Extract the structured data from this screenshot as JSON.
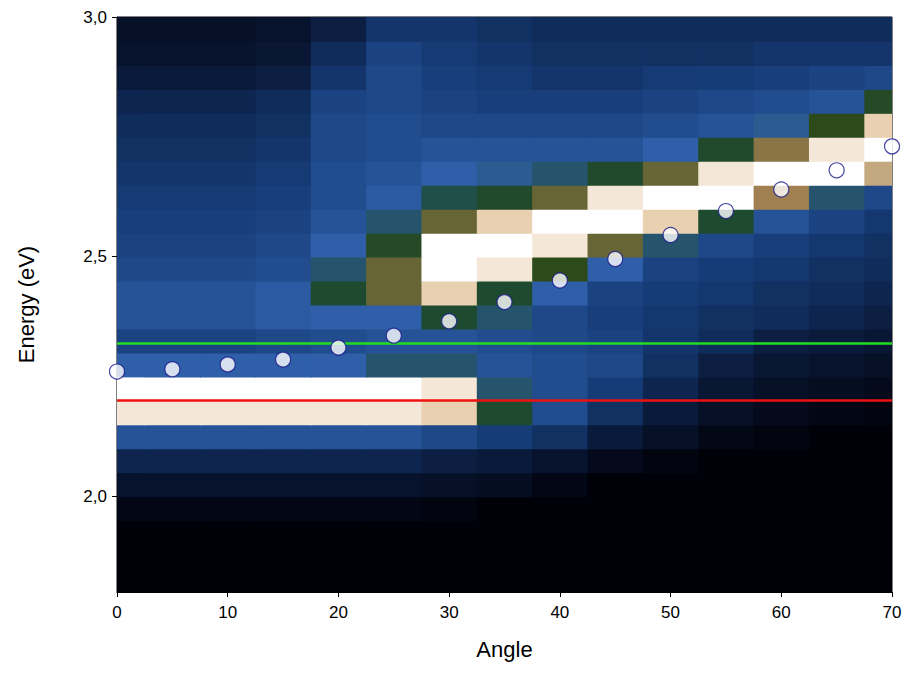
{
  "chart_data": {
    "type": "heatmap",
    "xlabel": "Angle",
    "ylabel": "Energy (eV)",
    "xlim": [
      0,
      70
    ],
    "ylim": [
      1.8,
      3.0
    ],
    "xticks": [
      0,
      10,
      20,
      30,
      40,
      50,
      60,
      70
    ],
    "yticks": [
      {
        "value": 2.0,
        "label": "2,0"
      },
      {
        "value": 2.5,
        "label": "2,5"
      },
      {
        "value": 3.0,
        "label": "3,0"
      }
    ],
    "grid": false,
    "heatmap": {
      "x": [
        0,
        5,
        10,
        15,
        20,
        25,
        30,
        35,
        40,
        45,
        50,
        55,
        60,
        65,
        70
      ],
      "y": [
        1.825,
        1.875,
        1.925,
        1.975,
        2.025,
        2.075,
        2.125,
        2.175,
        2.225,
        2.275,
        2.325,
        2.375,
        2.425,
        2.475,
        2.525,
        2.575,
        2.625,
        2.675,
        2.725,
        2.775,
        2.825,
        2.875,
        2.925,
        2.975
      ],
      "z": [
        [
          0,
          0,
          0,
          0,
          0,
          0,
          0,
          0,
          0,
          0,
          0,
          0,
          0,
          0,
          0
        ],
        [
          0,
          0,
          0,
          0,
          0,
          0,
          0,
          0,
          0,
          0,
          0,
          0,
          0,
          0,
          0
        ],
        [
          0,
          0,
          0,
          0,
          0,
          0,
          0,
          0,
          0,
          0,
          0,
          0,
          0,
          0,
          0
        ],
        [
          0.05,
          0.05,
          0.05,
          0.05,
          0.05,
          0.05,
          0.03,
          0,
          0,
          0,
          0,
          0,
          0,
          0,
          0
        ],
        [
          0.15,
          0.15,
          0.15,
          0.15,
          0.15,
          0.15,
          0.12,
          0.1,
          0.05,
          0,
          0,
          0,
          0,
          0,
          0
        ],
        [
          0.25,
          0.25,
          0.25,
          0.25,
          0.25,
          0.25,
          0.22,
          0.2,
          0.15,
          0.08,
          0.03,
          0,
          0,
          0,
          0
        ],
        [
          0.45,
          0.45,
          0.45,
          0.45,
          0.45,
          0.45,
          0.4,
          0.35,
          0.3,
          0.2,
          0.12,
          0.06,
          0.03,
          0,
          0
        ],
        [
          0.95,
          0.95,
          0.95,
          0.95,
          0.95,
          0.95,
          0.9,
          0.6,
          0.42,
          0.3,
          0.2,
          0.12,
          0.08,
          0.05,
          0.03
        ],
        [
          1,
          1,
          1,
          1,
          1,
          1,
          0.95,
          0.55,
          0.42,
          0.35,
          0.25,
          0.18,
          0.12,
          0.1,
          0.08
        ],
        [
          0.5,
          0.5,
          0.5,
          0.5,
          0.5,
          0.55,
          0.55,
          0.45,
          0.42,
          0.4,
          0.3,
          0.22,
          0.18,
          0.15,
          0.12
        ],
        [
          0.38,
          0.38,
          0.38,
          0.4,
          0.42,
          0.45,
          0.45,
          0.42,
          0.4,
          0.38,
          0.32,
          0.28,
          0.22,
          0.2,
          0.18
        ],
        [
          0.45,
          0.45,
          0.45,
          0.48,
          0.5,
          0.5,
          0.6,
          0.55,
          0.4,
          0.36,
          0.33,
          0.3,
          0.28,
          0.25,
          0.22
        ],
        [
          0.45,
          0.45,
          0.45,
          0.48,
          0.6,
          0.75,
          0.9,
          0.6,
          0.5,
          0.38,
          0.35,
          0.33,
          0.3,
          0.28,
          0.25
        ],
        [
          0.4,
          0.4,
          0.4,
          0.42,
          0.55,
          0.75,
          1,
          0.95,
          0.7,
          0.5,
          0.38,
          0.35,
          0.33,
          0.3,
          0.28
        ],
        [
          0.38,
          0.38,
          0.38,
          0.4,
          0.5,
          0.65,
          1,
          1,
          0.95,
          0.75,
          0.55,
          0.4,
          0.36,
          0.33,
          0.3
        ],
        [
          0.36,
          0.36,
          0.36,
          0.38,
          0.45,
          0.55,
          0.75,
          0.9,
          1,
          1,
          0.9,
          0.6,
          0.45,
          0.38,
          0.33
        ],
        [
          0.34,
          0.34,
          0.34,
          0.36,
          0.42,
          0.48,
          0.58,
          0.62,
          0.75,
          0.95,
          1,
          1,
          0.8,
          0.55,
          0.4
        ],
        [
          0.32,
          0.32,
          0.32,
          0.34,
          0.42,
          0.45,
          0.5,
          0.52,
          0.55,
          0.62,
          0.75,
          0.95,
          1,
          1,
          0.85
        ],
        [
          0.3,
          0.3,
          0.3,
          0.32,
          0.4,
          0.42,
          0.45,
          0.45,
          0.45,
          0.45,
          0.5,
          0.62,
          0.78,
          0.95,
          1
        ],
        [
          0.28,
          0.28,
          0.28,
          0.3,
          0.4,
          0.42,
          0.4,
          0.4,
          0.4,
          0.4,
          0.42,
          0.45,
          0.52,
          0.7,
          0.9
        ],
        [
          0.25,
          0.25,
          0.25,
          0.28,
          0.38,
          0.4,
          0.38,
          0.36,
          0.36,
          0.36,
          0.38,
          0.4,
          0.42,
          0.45,
          0.65
        ],
        [
          0.2,
          0.2,
          0.2,
          0.22,
          0.32,
          0.4,
          0.36,
          0.34,
          0.32,
          0.32,
          0.34,
          0.35,
          0.36,
          0.38,
          0.4
        ],
        [
          0.15,
          0.15,
          0.15,
          0.18,
          0.28,
          0.38,
          0.34,
          0.32,
          0.3,
          0.3,
          0.3,
          0.3,
          0.32,
          0.32,
          0.32
        ],
        [
          0.12,
          0.12,
          0.12,
          0.15,
          0.22,
          0.32,
          0.32,
          0.3,
          0.28,
          0.28,
          0.28,
          0.28,
          0.28,
          0.28,
          0.28
        ]
      ]
    },
    "series": [
      {
        "type": "scatter",
        "marker": "circle",
        "color": "#ffffff",
        "x": [
          0,
          5,
          10,
          15,
          20,
          25,
          30,
          35,
          40,
          45,
          50,
          55,
          60,
          65,
          70
        ],
        "values": [
          2.26,
          2.265,
          2.275,
          2.285,
          2.31,
          2.335,
          2.365,
          2.405,
          2.45,
          2.495,
          2.545,
          2.595,
          2.64,
          2.68,
          2.73
        ]
      },
      {
        "type": "hline",
        "color": "#22dd22",
        "values": [
          2.32
        ]
      },
      {
        "type": "hline",
        "color": "#ee1111",
        "values": [
          2.2
        ]
      }
    ]
  }
}
